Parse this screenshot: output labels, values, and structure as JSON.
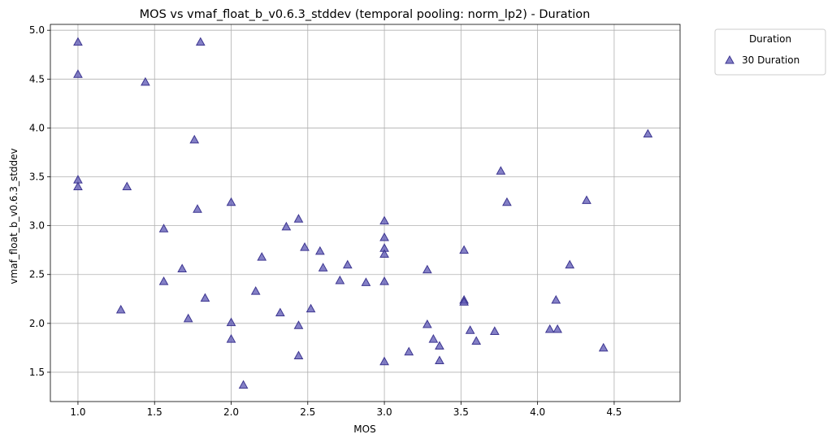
{
  "chart_data": {
    "type": "scatter",
    "title": "MOS vs vmaf_float_b_v0.6.3_stddev (temporal pooling: norm_lp2) - Duration",
    "xlabel": "MOS",
    "ylabel": "vmaf_float_b_v0.6.3_stddev",
    "xlim": [
      0.82,
      4.93
    ],
    "ylim": [
      1.2,
      5.06
    ],
    "xticks": [
      "1.0",
      "1.5",
      "2.0",
      "2.5",
      "3.0",
      "3.5",
      "4.0",
      "4.5"
    ],
    "yticks": [
      "1.5",
      "2.0",
      "2.5",
      "3.0",
      "3.5",
      "4.0",
      "4.5",
      "5.0"
    ],
    "grid": true,
    "legend": {
      "title": "Duration",
      "placement": "outside-top-right",
      "entries": [
        "30 Duration"
      ]
    },
    "series": [
      {
        "name": "30 Duration",
        "color": "#5b55b3",
        "marker": "triangle",
        "points": [
          [
            1.0,
            4.88
          ],
          [
            1.0,
            4.55
          ],
          [
            1.0,
            3.47
          ],
          [
            1.0,
            3.4
          ],
          [
            1.28,
            2.14
          ],
          [
            1.32,
            3.4
          ],
          [
            1.44,
            4.47
          ],
          [
            1.56,
            2.97
          ],
          [
            1.56,
            2.43
          ],
          [
            1.68,
            2.56
          ],
          [
            1.72,
            2.05
          ],
          [
            1.76,
            3.88
          ],
          [
            1.78,
            3.17
          ],
          [
            1.8,
            4.88
          ],
          [
            1.83,
            2.26
          ],
          [
            2.0,
            3.24
          ],
          [
            2.0,
            2.01
          ],
          [
            2.0,
            1.84
          ],
          [
            2.08,
            1.37
          ],
          [
            2.16,
            2.33
          ],
          [
            2.2,
            2.68
          ],
          [
            2.32,
            2.11
          ],
          [
            2.36,
            2.99
          ],
          [
            2.44,
            3.07
          ],
          [
            2.44,
            1.98
          ],
          [
            2.44,
            1.67
          ],
          [
            2.48,
            2.78
          ],
          [
            2.52,
            2.15
          ],
          [
            2.58,
            2.74
          ],
          [
            2.6,
            2.57
          ],
          [
            2.71,
            2.44
          ],
          [
            2.76,
            2.6
          ],
          [
            2.88,
            2.42
          ],
          [
            3.0,
            3.05
          ],
          [
            3.0,
            2.88
          ],
          [
            3.0,
            2.77
          ],
          [
            3.0,
            2.71
          ],
          [
            3.0,
            2.43
          ],
          [
            3.0,
            1.61
          ],
          [
            3.16,
            1.71
          ],
          [
            3.28,
            2.55
          ],
          [
            3.28,
            1.99
          ],
          [
            3.32,
            1.84
          ],
          [
            3.36,
            1.77
          ],
          [
            3.36,
            1.62
          ],
          [
            3.52,
            2.75
          ],
          [
            3.52,
            2.24
          ],
          [
            3.52,
            2.22
          ],
          [
            3.56,
            1.93
          ],
          [
            3.6,
            1.82
          ],
          [
            3.72,
            1.92
          ],
          [
            3.76,
            3.56
          ],
          [
            3.8,
            3.24
          ],
          [
            4.08,
            1.94
          ],
          [
            4.12,
            2.24
          ],
          [
            4.13,
            1.94
          ],
          [
            4.21,
            2.6
          ],
          [
            4.32,
            3.26
          ],
          [
            4.43,
            1.75
          ],
          [
            4.72,
            3.94
          ]
        ]
      }
    ]
  }
}
